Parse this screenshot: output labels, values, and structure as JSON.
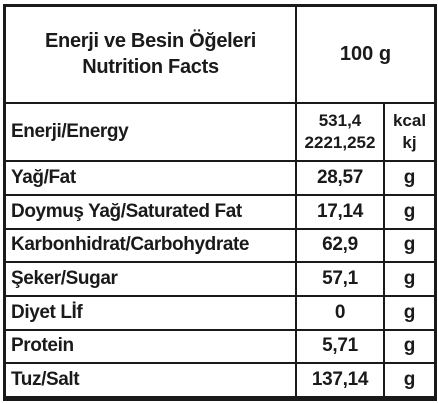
{
  "header": {
    "title_line1": "Enerji ve Besin Öğeleri",
    "title_line2": "Nutrition Facts",
    "amount": "100 g"
  },
  "energy": {
    "label": "Enerji/Energy",
    "value_kcal": "531,4",
    "value_kj": "2221,252",
    "unit_kcal": "kcal",
    "unit_kj": "kj"
  },
  "rows": [
    {
      "label": "Yağ/Fat",
      "value": "28,57",
      "unit": "g"
    },
    {
      "label": "Doymuş Yağ/Saturated Fat",
      "value": "17,14",
      "unit": "g"
    },
    {
      "label": "Karbonhidrat/Carbohydrate",
      "value": "62,9",
      "unit": "g"
    },
    {
      "label": "Şeker/Sugar",
      "value": "57,1",
      "unit": "g"
    },
    {
      "label": "Diyet Lİf",
      "value": "0",
      "unit": "g"
    },
    {
      "label": "Protein",
      "value": "5,71",
      "unit": "g"
    },
    {
      "label": "Tuz/Salt",
      "value": "137,14",
      "unit": "g"
    }
  ],
  "colors": {
    "border": "#1a1a1a",
    "text": "#1a1a1a",
    "background": "#ffffff"
  }
}
